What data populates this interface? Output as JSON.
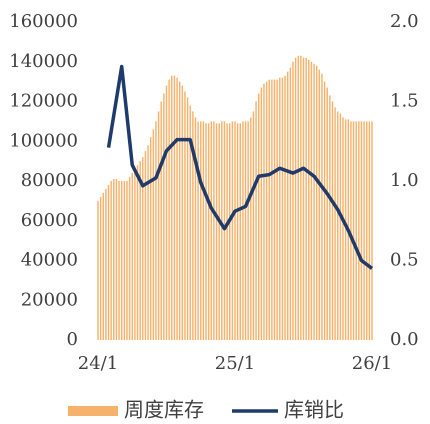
{
  "chart_data": {
    "type": "bar_line",
    "xlim": [
      0,
      104
    ],
    "xticks": [
      {
        "value": 0,
        "label": "24/1"
      },
      {
        "value": 52,
        "label": "25/1"
      },
      {
        "value": 104,
        "label": "26/1"
      }
    ],
    "ylim": [
      0,
      160000
    ],
    "yticks": [
      0,
      20000,
      40000,
      60000,
      80000,
      100000,
      120000,
      140000,
      160000
    ],
    "y2lim": [
      0,
      2
    ],
    "y2ticks": [
      {
        "value": 0,
        "label": "0.0"
      },
      {
        "value": 0.5,
        "label": "0.5"
      },
      {
        "value": 1,
        "label": "1.0"
      },
      {
        "value": 1.5,
        "label": "1.5"
      },
      {
        "value": 2,
        "label": "2.0"
      }
    ],
    "grid": false,
    "legend": "bottom",
    "series": [
      {
        "name": "周度库存",
        "type": "bar",
        "color": "#f6b26b",
        "x": [
          0,
          1,
          2,
          3,
          4,
          5,
          6,
          7,
          8,
          9,
          10,
          11,
          12,
          13,
          14,
          15,
          16,
          17,
          18,
          19,
          20,
          21,
          22,
          23,
          24,
          25,
          26,
          27,
          28,
          29,
          30,
          31,
          32,
          33,
          34,
          35,
          36,
          37,
          38,
          39,
          40,
          41,
          42,
          43,
          44,
          45,
          46,
          47,
          48,
          49,
          50,
          51,
          52,
          53,
          54,
          55,
          56,
          57,
          58,
          59,
          60,
          61,
          62,
          63,
          64,
          65,
          66,
          67,
          68,
          69,
          70,
          71,
          72,
          73,
          74,
          75,
          76,
          77,
          78,
          79,
          80,
          81,
          82,
          83,
          84,
          85,
          86,
          87,
          88,
          89,
          90,
          91,
          92,
          93,
          94,
          95,
          96,
          97,
          98,
          99,
          100,
          101,
          102,
          103,
          104
        ],
        "values": [
          70000,
          72000,
          74000,
          76000,
          78000,
          80000,
          81000,
          81000,
          80000,
          80000,
          80000,
          80000,
          82000,
          84000,
          86000,
          88000,
          90000,
          92000,
          95000,
          98000,
          102000,
          106000,
          110000,
          115000,
          120000,
          124000,
          128000,
          131000,
          133000,
          133000,
          132000,
          130000,
          128000,
          125000,
          122000,
          118000,
          115000,
          112000,
          110000,
          110000,
          110000,
          109000,
          109000,
          110000,
          110000,
          109000,
          109000,
          110000,
          110000,
          109000,
          109000,
          110000,
          110000,
          109000,
          109000,
          110000,
          110000,
          110000,
          112000,
          115000,
          120000,
          124000,
          127000,
          129000,
          130000,
          131000,
          131000,
          131000,
          131000,
          132000,
          132000,
          133000,
          135000,
          137000,
          140000,
          142000,
          143000,
          143000,
          142000,
          142000,
          141000,
          140000,
          139000,
          138000,
          136000,
          134000,
          130000,
          127000,
          123000,
          120000,
          117000,
          115000,
          114000,
          112000,
          111000,
          111000,
          110000,
          110000,
          110000,
          110000,
          110000,
          110000,
          110000,
          110000,
          110000
        ]
      },
      {
        "name": "库销比",
        "type": "line",
        "axis": "y2",
        "color": "#1f3b6b",
        "x": [
          4,
          9,
          13,
          17,
          22,
          26,
          30,
          35,
          39,
          43,
          48,
          52,
          56,
          61,
          65,
          69,
          74,
          78,
          82,
          87,
          91,
          95,
          100,
          104
        ],
        "values": [
          1.21,
          1.72,
          1.1,
          0.97,
          1.02,
          1.19,
          1.26,
          1.26,
          0.99,
          0.83,
          0.7,
          0.81,
          0.84,
          1.03,
          1.04,
          1.08,
          1.05,
          1.08,
          1.03,
          0.92,
          0.82,
          0.69,
          0.5,
          0.45
        ]
      }
    ]
  }
}
